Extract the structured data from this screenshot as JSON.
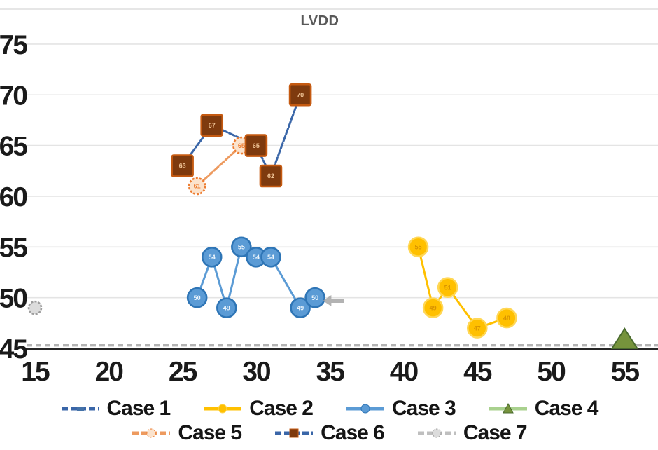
{
  "chart": {
    "title": "LVDD",
    "title_color": "#595959"
  },
  "chart_data": {
    "type": "line",
    "title": "LVDD",
    "xlabel": "",
    "ylabel": "",
    "xlim": [
      14.5,
      57.2
    ],
    "ylim": [
      45,
      78.5
    ],
    "x_ticks": [
      15,
      20,
      25,
      30,
      35,
      40,
      45,
      50,
      55
    ],
    "y_ticks": [
      45,
      50,
      55,
      60,
      65,
      70,
      75
    ],
    "grid": "horizontal",
    "legend_position": "bottom",
    "point_labels": "y-value shown inside each marker",
    "series": [
      {
        "name": "Case 1",
        "line_color": "#3a66a8",
        "line_style": "dashed",
        "marker": "dash",
        "marker_fill": "#4472a8",
        "points": []
      },
      {
        "name": "Case 2",
        "line_color": "#ffc000",
        "line_style": "solid",
        "marker": "circle",
        "marker_fill": "#ffc000",
        "marker_stroke": "#ffd755",
        "points": [
          [
            41,
            55
          ],
          [
            42,
            49
          ],
          [
            43,
            51
          ],
          [
            45,
            47
          ],
          [
            47,
            48
          ]
        ]
      },
      {
        "name": "Case 3",
        "line_color": "#5b9bd5",
        "line_style": "solid",
        "marker": "circle",
        "marker_fill": "#5b9bd5",
        "marker_stroke": "#2e75b6",
        "points": [
          [
            26,
            50
          ],
          [
            27,
            54
          ],
          [
            28,
            49
          ],
          [
            29,
            55
          ],
          [
            30,
            54
          ],
          [
            31,
            54
          ],
          [
            33,
            49
          ],
          [
            34,
            50
          ]
        ]
      },
      {
        "name": "Case 4",
        "line_color": "#a9d18e",
        "line_style": "solid",
        "marker": "triangle",
        "marker_fill": "#76933c",
        "marker_stroke": "#4a6b2f",
        "points": [
          [
            55,
            46
          ]
        ]
      },
      {
        "name": "Case 5",
        "line_color": "#ed9a5f",
        "line_style": "dashed",
        "marker": "sun-circle",
        "marker_fill": "#fbe3cd",
        "marker_stroke": "#ed7d31",
        "points": [
          [
            26,
            61
          ],
          [
            29,
            65
          ]
        ]
      },
      {
        "name": "Case 6",
        "line_color": "#3a66a8",
        "line_style": "dashed",
        "marker": "square",
        "marker_fill": "#7e3a0e",
        "marker_stroke": "#c55a11",
        "points": [
          [
            25,
            63
          ],
          [
            27,
            67
          ],
          [
            30,
            65
          ],
          [
            31,
            62
          ],
          [
            33,
            70
          ]
        ]
      },
      {
        "name": "Case 7",
        "line_color": "#bfbfbf",
        "line_style": "dashed",
        "marker": "sun-circle",
        "marker_fill": "#dcdcdc",
        "marker_stroke": "#9e9e9e",
        "points": [
          [
            15,
            49
          ]
        ]
      }
    ],
    "annotations": [
      {
        "type": "dashed-baseline",
        "y": 45.3,
        "color": "#b3b3b3",
        "note": "gray dashed line spanning full width just above x-axis"
      },
      {
        "type": "gray-arrow-marker",
        "x": 35.2,
        "y": 49.7,
        "color": "#a6a6a6"
      }
    ]
  },
  "legend": {
    "row1": [
      "Case 1",
      "Case 2",
      "Case 3",
      "Case 4"
    ],
    "row2": [
      "Case 5",
      "Case 6",
      "Case 7"
    ]
  }
}
